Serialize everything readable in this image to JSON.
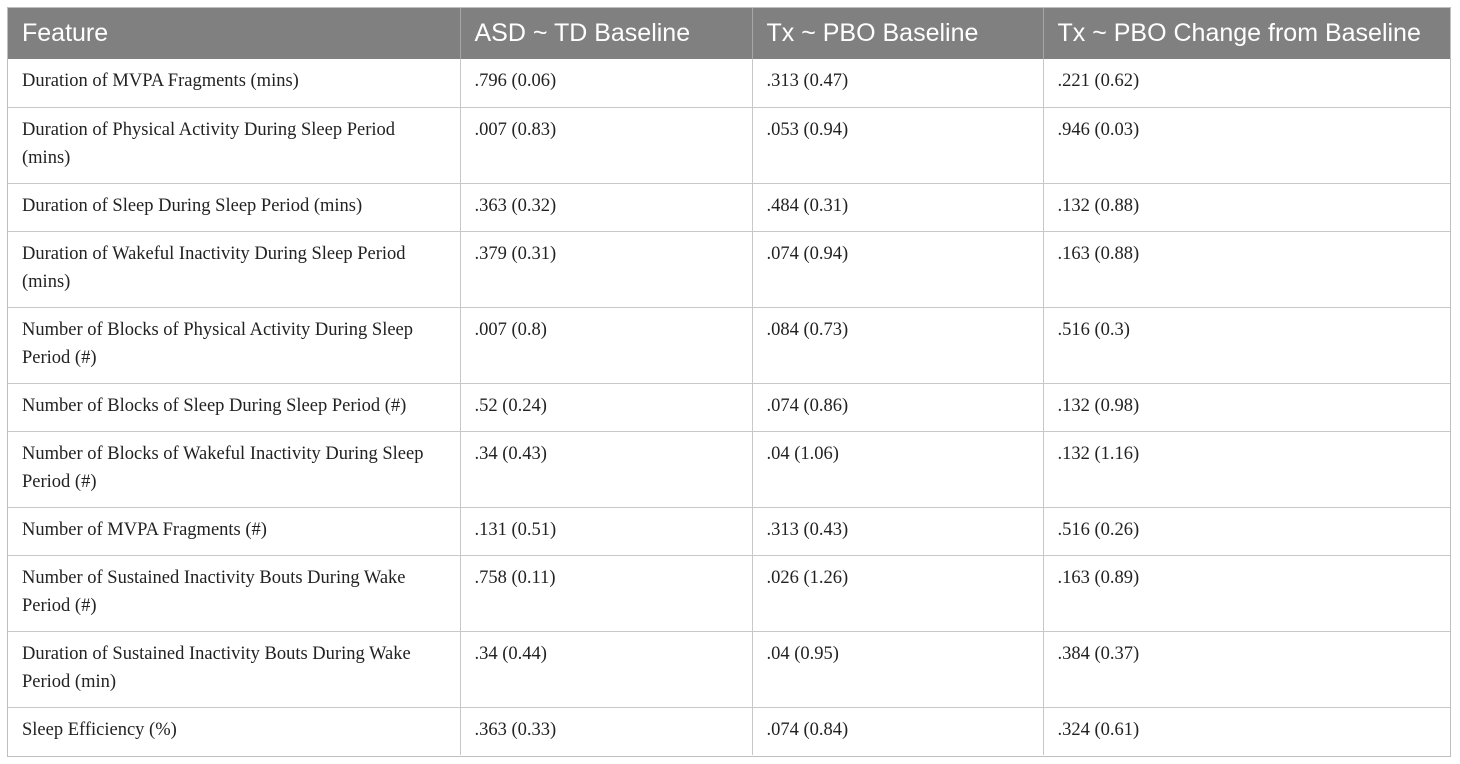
{
  "table": {
    "headers": [
      "Feature",
      "ASD ~ TD Baseline",
      "Tx ~ PBO Baseline",
      "Tx ~ PBO Change from Baseline"
    ],
    "rows": [
      [
        "Duration of MVPA Fragments (mins)",
        ".796 (0.06)",
        ".313 (0.47)",
        ".221 (0.62)"
      ],
      [
        "Duration of Physical Activity During Sleep Period (mins)",
        ".007 (0.83)",
        ".053 (0.94)",
        ".946 (0.03)"
      ],
      [
        "Duration of Sleep During Sleep Period (mins)",
        ".363 (0.32)",
        ".484 (0.31)",
        ".132 (0.88)"
      ],
      [
        "Duration of Wakeful Inactivity During Sleep Period (mins)",
        ".379 (0.31)",
        ".074 (0.94)",
        ".163 (0.88)"
      ],
      [
        "Number of Blocks of Physical Activity During Sleep Period (#)",
        ".007 (0.8)",
        ".084 (0.73)",
        ".516 (0.3)"
      ],
      [
        "Number of Blocks of Sleep During Sleep Period (#)",
        ".52 (0.24)",
        ".074 (0.86)",
        ".132 (0.98)"
      ],
      [
        "Number of Blocks of Wakeful Inactivity During Sleep Period (#)",
        ".34 (0.43)",
        ".04 (1.06)",
        ".132 (1.16)"
      ],
      [
        "Number of MVPA Fragments (#)",
        ".131 (0.51)",
        ".313 (0.43)",
        ".516 (0.26)"
      ],
      [
        "Number of Sustained Inactivity Bouts During Wake Period (#)",
        ".758 (0.11)",
        ".026 (1.26)",
        ".163 (0.89)"
      ],
      [
        "Duration of Sustained Inactivity Bouts During Wake Period (min)",
        ".34 (0.44)",
        ".04 (0.95)",
        ".384 (0.37)"
      ],
      [
        "Sleep Efficiency (%)",
        ".363 (0.33)",
        ".074 (0.84)",
        ".324 (0.61)"
      ]
    ]
  }
}
